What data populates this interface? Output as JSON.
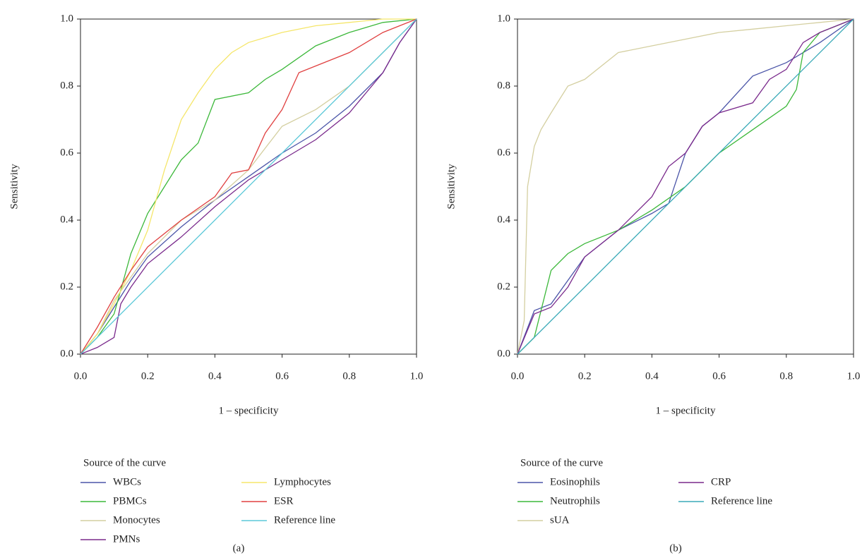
{
  "chart_data": [
    {
      "type": "line",
      "caption": "(a)",
      "xlabel": "1 – specificity",
      "ylabel": "Sensitivity",
      "legend_title": "Source of the curve",
      "xlim": [
        0,
        1
      ],
      "ylim": [
        0,
        1
      ],
      "xticks": [
        {
          "value": 0,
          "label": "0.0"
        },
        {
          "value": 0.2,
          "label": "0.2"
        },
        {
          "value": 0.4,
          "label": "0.4"
        },
        {
          "value": 0.6,
          "label": "0.6"
        },
        {
          "value": 0.8,
          "label": "0.8"
        },
        {
          "value": 1,
          "label": "1.0"
        }
      ],
      "yticks": [
        {
          "value": 0,
          "label": "0.0"
        },
        {
          "value": 0.2,
          "label": "0.2"
        },
        {
          "value": 0.4,
          "label": "0.4"
        },
        {
          "value": 0.6,
          "label": "0.6"
        },
        {
          "value": 0.8,
          "label": "0.8"
        },
        {
          "value": 1,
          "label": "1.0"
        }
      ],
      "series": [
        {
          "name": "WBCs",
          "color": "#4b55a8",
          "x": [
            0,
            0.05,
            0.1,
            0.15,
            0.2,
            0.3,
            0.4,
            0.5,
            0.6,
            0.7,
            0.8,
            0.9,
            0.95,
            1
          ],
          "values": [
            0,
            0.06,
            0.14,
            0.22,
            0.29,
            0.38,
            0.46,
            0.53,
            0.6,
            0.66,
            0.74,
            0.84,
            0.93,
            1
          ]
        },
        {
          "name": "PBMCs",
          "color": "#3cb83a",
          "x": [
            0,
            0.05,
            0.1,
            0.15,
            0.2,
            0.25,
            0.3,
            0.35,
            0.4,
            0.5,
            0.55,
            0.6,
            0.7,
            0.8,
            0.9,
            1
          ],
          "values": [
            0,
            0.05,
            0.12,
            0.3,
            0.42,
            0.5,
            0.58,
            0.63,
            0.76,
            0.78,
            0.82,
            0.85,
            0.92,
            0.96,
            0.99,
            1
          ]
        },
        {
          "name": "Monocytes",
          "color": "#d4cfa0",
          "x": [
            0,
            0.05,
            0.1,
            0.2,
            0.3,
            0.4,
            0.5,
            0.6,
            0.7,
            0.8,
            0.9,
            1
          ],
          "values": [
            0,
            0.06,
            0.16,
            0.3,
            0.4,
            0.46,
            0.55,
            0.68,
            0.73,
            0.8,
            0.9,
            1
          ]
        },
        {
          "name": "PMNs",
          "color": "#7a2a8c",
          "x": [
            0,
            0.05,
            0.1,
            0.12,
            0.15,
            0.2,
            0.3,
            0.4,
            0.5,
            0.6,
            0.7,
            0.8,
            0.85,
            0.9,
            0.95,
            1
          ],
          "values": [
            0,
            0.02,
            0.05,
            0.15,
            0.2,
            0.27,
            0.35,
            0.44,
            0.52,
            0.58,
            0.64,
            0.72,
            0.78,
            0.84,
            0.93,
            1
          ]
        },
        {
          "name": "Lymphocytes",
          "color": "#f5e66a",
          "x": [
            0,
            0.05,
            0.1,
            0.15,
            0.2,
            0.25,
            0.3,
            0.35,
            0.4,
            0.45,
            0.5,
            0.6,
            0.7,
            0.8,
            0.9,
            1
          ],
          "values": [
            0,
            0.06,
            0.15,
            0.25,
            0.37,
            0.55,
            0.7,
            0.78,
            0.85,
            0.9,
            0.93,
            0.96,
            0.98,
            0.99,
            1,
            1
          ]
        },
        {
          "name": "ESR",
          "color": "#e04040",
          "x": [
            0,
            0.05,
            0.1,
            0.15,
            0.2,
            0.3,
            0.4,
            0.45,
            0.5,
            0.55,
            0.6,
            0.65,
            0.7,
            0.8,
            0.9,
            1
          ],
          "values": [
            0,
            0.08,
            0.17,
            0.25,
            0.32,
            0.4,
            0.47,
            0.54,
            0.55,
            0.66,
            0.73,
            0.84,
            0.86,
            0.9,
            0.96,
            1
          ]
        },
        {
          "name": "Reference line",
          "color": "#5bc8d8",
          "x": [
            0,
            1
          ],
          "values": [
            0,
            1
          ]
        }
      ]
    },
    {
      "type": "line",
      "caption": "(b)",
      "xlabel": "1 – specificity",
      "ylabel": "Sensitivity",
      "legend_title": "Source of the curve",
      "xlim": [
        0,
        1
      ],
      "ylim": [
        0,
        1
      ],
      "xticks": [
        {
          "value": 0,
          "label": "0.0"
        },
        {
          "value": 0.2,
          "label": "0.2"
        },
        {
          "value": 0.4,
          "label": "0.4"
        },
        {
          "value": 0.6,
          "label": "0.6"
        },
        {
          "value": 0.8,
          "label": "0.8"
        },
        {
          "value": 1,
          "label": "1.0"
        }
      ],
      "yticks": [
        {
          "value": 0,
          "label": "0.0"
        },
        {
          "value": 0.2,
          "label": "0.2"
        },
        {
          "value": 0.4,
          "label": "0.4"
        },
        {
          "value": 0.6,
          "label": "0.6"
        },
        {
          "value": 0.8,
          "label": "0.8"
        },
        {
          "value": 1,
          "label": "1.0"
        }
      ],
      "series": [
        {
          "name": "Eosinophils",
          "color": "#4b55a8",
          "x": [
            0,
            0.05,
            0.1,
            0.15,
            0.2,
            0.3,
            0.4,
            0.45,
            0.5,
            0.55,
            0.6,
            0.7,
            0.8,
            0.9,
            1
          ],
          "values": [
            0,
            0.13,
            0.15,
            0.22,
            0.29,
            0.37,
            0.42,
            0.45,
            0.6,
            0.68,
            0.72,
            0.83,
            0.87,
            0.93,
            1
          ]
        },
        {
          "name": "Neutrophils",
          "color": "#3cb83a",
          "x": [
            0,
            0.05,
            0.1,
            0.15,
            0.2,
            0.3,
            0.4,
            0.5,
            0.6,
            0.7,
            0.8,
            0.83,
            0.85,
            0.9,
            1
          ],
          "values": [
            0,
            0.05,
            0.25,
            0.3,
            0.33,
            0.37,
            0.43,
            0.5,
            0.6,
            0.67,
            0.74,
            0.79,
            0.9,
            0.96,
            1
          ]
        },
        {
          "name": "sUA",
          "color": "#d4cfa0",
          "x": [
            0,
            0.02,
            0.03,
            0.05,
            0.07,
            0.1,
            0.15,
            0.2,
            0.25,
            0.3,
            0.4,
            0.5,
            0.6,
            0.7,
            0.8,
            0.9,
            1
          ],
          "values": [
            0,
            0.1,
            0.5,
            0.62,
            0.67,
            0.72,
            0.8,
            0.82,
            0.86,
            0.9,
            0.92,
            0.94,
            0.96,
            0.97,
            0.98,
            0.99,
            1
          ]
        },
        {
          "name": "CRP",
          "color": "#7a2a8c",
          "x": [
            0,
            0.05,
            0.1,
            0.15,
            0.2,
            0.3,
            0.4,
            0.45,
            0.5,
            0.55,
            0.6,
            0.7,
            0.75,
            0.8,
            0.85,
            0.9,
            1
          ],
          "values": [
            0,
            0.12,
            0.14,
            0.2,
            0.29,
            0.37,
            0.47,
            0.56,
            0.6,
            0.68,
            0.72,
            0.75,
            0.82,
            0.85,
            0.93,
            0.96,
            1
          ]
        },
        {
          "name": "Reference line",
          "color": "#3aaab8",
          "x": [
            0,
            1
          ],
          "values": [
            0,
            1
          ]
        }
      ]
    }
  ]
}
